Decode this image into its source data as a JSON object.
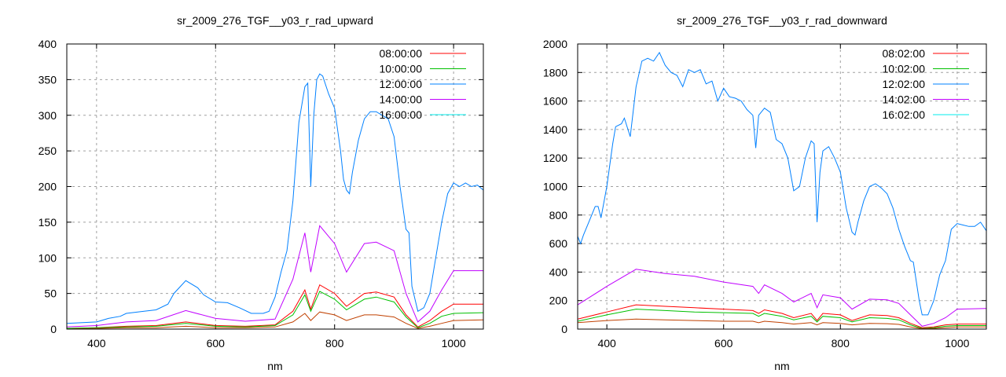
{
  "chart_data": [
    {
      "type": "line",
      "title": "sr_2009_276_TGF__y03_r_rad_upward",
      "xlabel": "nm",
      "ylabel": "",
      "xlim": [
        350,
        1050
      ],
      "ylim": [
        0,
        400
      ],
      "xticks": [
        400,
        600,
        800,
        1000
      ],
      "yticks": [
        0,
        50,
        100,
        150,
        200,
        250,
        300,
        350,
        400
      ],
      "grid": true,
      "legend": "top-right",
      "series": [
        {
          "name": "08:00:00",
          "color": "#ff0000",
          "x": [
            350,
            400,
            450,
            500,
            550,
            600,
            650,
            700,
            730,
            750,
            760,
            775,
            800,
            820,
            850,
            870,
            900,
            920,
            940,
            960,
            980,
            1000,
            1050
          ],
          "y": [
            1,
            2,
            4,
            5,
            10,
            5,
            4,
            6,
            25,
            55,
            28,
            62,
            50,
            32,
            50,
            52,
            45,
            20,
            3,
            12,
            25,
            35,
            35
          ]
        },
        {
          "name": "10:00:00",
          "color": "#00c000",
          "x": [
            350,
            400,
            450,
            500,
            550,
            600,
            650,
            700,
            730,
            750,
            760,
            775,
            800,
            820,
            850,
            870,
            900,
            920,
            940,
            960,
            980,
            1000,
            1050
          ],
          "y": [
            1,
            2,
            3,
            4,
            8,
            4,
            3,
            5,
            20,
            48,
            25,
            53,
            42,
            27,
            42,
            45,
            38,
            17,
            2,
            8,
            18,
            22,
            23
          ]
        },
        {
          "name": "12:00:00",
          "color": "#0080ff",
          "x": [
            350,
            400,
            420,
            440,
            450,
            480,
            500,
            520,
            530,
            550,
            570,
            580,
            600,
            620,
            640,
            660,
            680,
            690,
            700,
            710,
            720,
            730,
            740,
            750,
            755,
            760,
            765,
            770,
            775,
            780,
            790,
            800,
            810,
            815,
            820,
            825,
            830,
            840,
            850,
            860,
            870,
            880,
            890,
            900,
            910,
            920,
            925,
            930,
            940,
            950,
            960,
            970,
            980,
            990,
            1000,
            1010,
            1020,
            1030,
            1040,
            1050
          ],
          "y": [
            8,
            10,
            15,
            18,
            22,
            25,
            27,
            35,
            50,
            68,
            58,
            48,
            38,
            37,
            30,
            22,
            22,
            25,
            45,
            80,
            110,
            180,
            290,
            340,
            345,
            200,
            300,
            350,
            358,
            355,
            330,
            310,
            250,
            210,
            195,
            190,
            220,
            265,
            295,
            305,
            305,
            300,
            295,
            270,
            200,
            140,
            135,
            60,
            25,
            30,
            50,
            100,
            150,
            190,
            205,
            200,
            205,
            200,
            202,
            195
          ]
        },
        {
          "name": "14:00:00",
          "color": "#c000ff",
          "x": [
            350,
            400,
            450,
            500,
            550,
            600,
            650,
            700,
            730,
            750,
            760,
            775,
            800,
            820,
            850,
            870,
            900,
            920,
            940,
            960,
            980,
            1000,
            1050
          ],
          "y": [
            3,
            5,
            10,
            12,
            26,
            15,
            11,
            14,
            70,
            135,
            80,
            145,
            120,
            80,
            120,
            122,
            110,
            50,
            10,
            25,
            55,
            82,
            82
          ]
        },
        {
          "name": "16:00:00",
          "color": "#c04000",
          "legend_color": "#00eeee",
          "x": [
            350,
            400,
            450,
            500,
            550,
            600,
            650,
            700,
            730,
            750,
            760,
            775,
            800,
            820,
            850,
            870,
            900,
            920,
            940,
            960,
            980,
            1000,
            1050
          ],
          "y": [
            0,
            1,
            2,
            2,
            4,
            2,
            2,
            3,
            10,
            22,
            12,
            24,
            20,
            12,
            20,
            20,
            17,
            8,
            1,
            4,
            8,
            12,
            13
          ]
        }
      ]
    },
    {
      "type": "line",
      "title": "sr_2009_276_TGF__y03_r_rad_downward",
      "xlabel": "nm",
      "ylabel": "",
      "xlim": [
        350,
        1050
      ],
      "ylim": [
        0,
        2000
      ],
      "xticks": [
        400,
        600,
        800,
        1000
      ],
      "yticks": [
        0,
        200,
        400,
        600,
        800,
        1000,
        1200,
        1400,
        1600,
        1800,
        2000
      ],
      "grid": true,
      "legend": "top-right",
      "series": [
        {
          "name": "08:02:00",
          "color": "#ff0000",
          "x": [
            350,
            400,
            450,
            500,
            550,
            600,
            650,
            660,
            670,
            700,
            720,
            750,
            760,
            770,
            800,
            820,
            850,
            880,
            900,
            920,
            940,
            960,
            980,
            1000,
            1050
          ],
          "y": [
            70,
            120,
            170,
            160,
            150,
            140,
            130,
            110,
            135,
            110,
            80,
            110,
            60,
            110,
            100,
            60,
            100,
            95,
            80,
            40,
            10,
            15,
            30,
            35,
            35
          ]
        },
        {
          "name": "10:02:00",
          "color": "#00c000",
          "x": [
            350,
            400,
            450,
            500,
            550,
            600,
            650,
            660,
            670,
            700,
            720,
            750,
            760,
            770,
            800,
            820,
            850,
            880,
            900,
            920,
            940,
            960,
            980,
            1000,
            1050
          ],
          "y": [
            55,
            100,
            140,
            130,
            120,
            115,
            110,
            90,
            110,
            90,
            65,
            90,
            50,
            90,
            80,
            50,
            80,
            75,
            65,
            30,
            5,
            10,
            20,
            25,
            25
          ]
        },
        {
          "name": "12:02:00",
          "color": "#0080ff",
          "x": [
            350,
            355,
            360,
            370,
            380,
            385,
            390,
            400,
            410,
            415,
            425,
            430,
            440,
            450,
            460,
            470,
            480,
            490,
            500,
            510,
            520,
            530,
            540,
            550,
            560,
            570,
            580,
            590,
            600,
            610,
            620,
            630,
            640,
            650,
            655,
            660,
            670,
            680,
            690,
            700,
            710,
            720,
            730,
            740,
            750,
            755,
            760,
            765,
            770,
            780,
            790,
            800,
            810,
            820,
            825,
            830,
            840,
            850,
            860,
            870,
            880,
            890,
            900,
            910,
            920,
            925,
            935,
            940,
            950,
            960,
            970,
            980,
            990,
            1000,
            1010,
            1020,
            1030,
            1040,
            1050
          ],
          "y": [
            650,
            600,
            660,
            760,
            860,
            860,
            780,
            1000,
            1300,
            1420,
            1440,
            1480,
            1350,
            1700,
            1880,
            1900,
            1880,
            1940,
            1850,
            1800,
            1780,
            1700,
            1820,
            1800,
            1820,
            1720,
            1740,
            1600,
            1690,
            1630,
            1620,
            1600,
            1540,
            1500,
            1270,
            1500,
            1550,
            1520,
            1330,
            1300,
            1200,
            970,
            1000,
            1200,
            1320,
            1300,
            750,
            1100,
            1250,
            1280,
            1200,
            1100,
            850,
            680,
            660,
            750,
            900,
            1000,
            1020,
            990,
            950,
            850,
            700,
            580,
            480,
            470,
            200,
            100,
            100,
            200,
            380,
            480,
            700,
            740,
            730,
            720,
            720,
            750,
            690
          ]
        },
        {
          "name": "14:02:00",
          "color": "#c000ff",
          "x": [
            350,
            400,
            450,
            500,
            550,
            600,
            650,
            660,
            670,
            700,
            720,
            750,
            760,
            770,
            800,
            820,
            850,
            880,
            900,
            920,
            940,
            960,
            980,
            1000,
            1050
          ],
          "y": [
            170,
            300,
            420,
            390,
            370,
            330,
            300,
            250,
            310,
            250,
            190,
            250,
            150,
            240,
            220,
            140,
            210,
            205,
            180,
            100,
            20,
            40,
            80,
            140,
            145
          ]
        },
        {
          "name": "16:02:00",
          "color": "#c04000",
          "legend_color": "#00eeee",
          "x": [
            350,
            400,
            450,
            500,
            550,
            600,
            650,
            660,
            670,
            700,
            720,
            750,
            760,
            770,
            800,
            820,
            850,
            880,
            900,
            920,
            940,
            960,
            980,
            1000,
            1050
          ],
          "y": [
            45,
            60,
            70,
            65,
            60,
            55,
            55,
            45,
            55,
            45,
            35,
            45,
            30,
            45,
            40,
            30,
            40,
            38,
            33,
            15,
            3,
            5,
            10,
            15,
            15
          ]
        }
      ]
    }
  ]
}
